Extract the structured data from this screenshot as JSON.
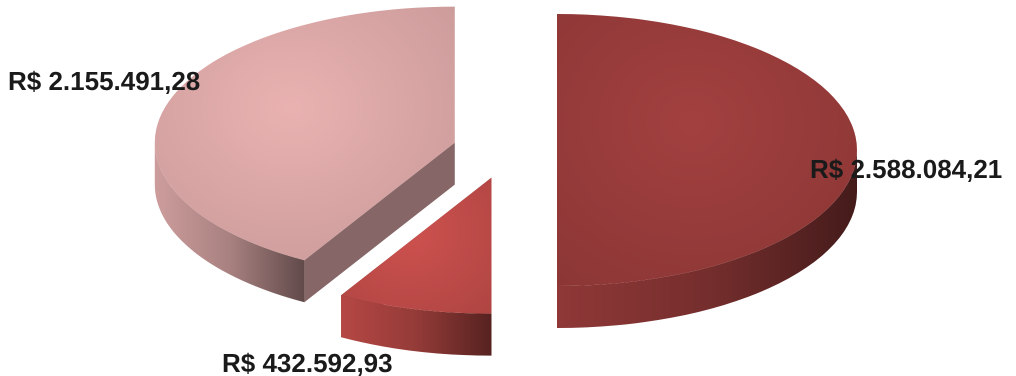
{
  "chart_data": {
    "type": "pie",
    "style": "3d-exploded",
    "slices": [
      {
        "label": "R$ 2.588.084,21",
        "value": 2588084.21,
        "color": "#963b3a"
      },
      {
        "label": "R$ 432.592,93",
        "value": 432592.93,
        "color": "#be4b48"
      },
      {
        "label": "R$ 2.155.491,28",
        "value": 2155491.28,
        "color": "#d8a5a4"
      }
    ],
    "title": "",
    "legend": "none",
    "data_labels": "outside"
  }
}
